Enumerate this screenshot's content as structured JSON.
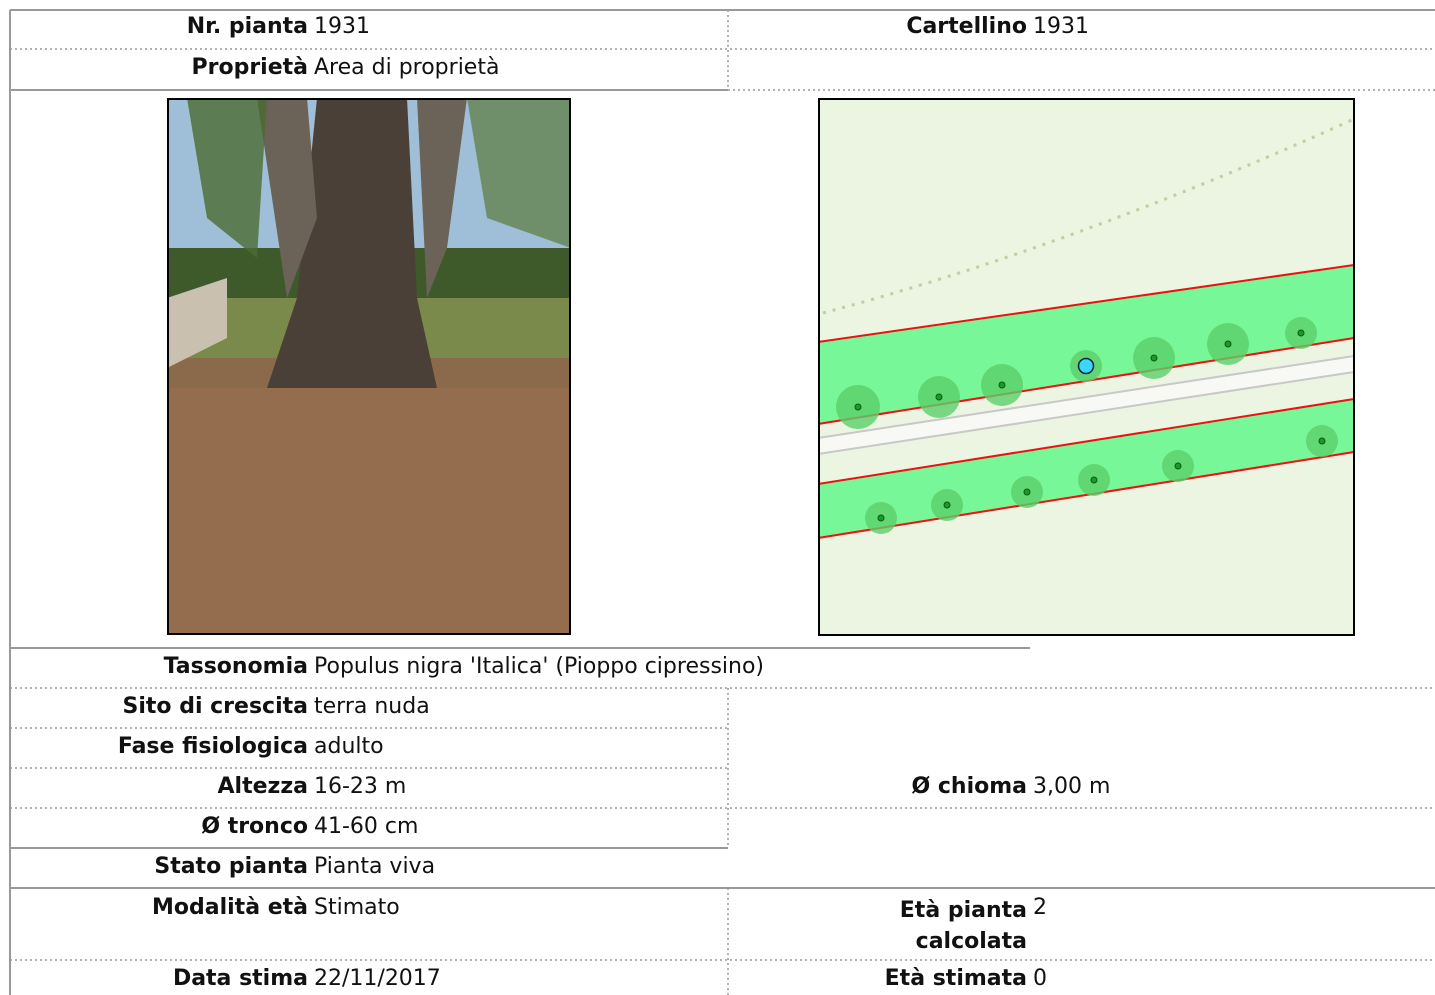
{
  "header": {
    "plant_number": {
      "label": "Nr. pianta",
      "value": "1931"
    },
    "tag": {
      "label": "Cartellino",
      "value": "1931"
    },
    "property": {
      "label": "Proprietà",
      "value": "Area di proprietà"
    }
  },
  "details": {
    "taxonomy": {
      "label": "Tassonomia",
      "value": "Populus nigra 'Italica' (Pioppo cipressino)"
    },
    "site": {
      "label": "Sito di crescita",
      "value": "terra nuda"
    },
    "phase": {
      "label": "Fase fisiologica",
      "value": "adulto"
    },
    "height": {
      "label": "Altezza",
      "value": "16-23 m"
    },
    "crown": {
      "label": "Ø chioma",
      "value": "3,00 m"
    },
    "trunk": {
      "label": "Ø tronco",
      "value": "41-60 cm"
    },
    "state": {
      "label": "Stato pianta",
      "value": "Pianta viva"
    }
  },
  "age": {
    "mode": {
      "label": "Modalità età",
      "value": "Stimato"
    },
    "computed": {
      "label": "Età pianta calcolata",
      "value": "2"
    },
    "estimate_date": {
      "label": "Data stima",
      "value": "22/11/2017"
    },
    "estimated": {
      "label": "Età stimata",
      "value": "0"
    }
  }
}
